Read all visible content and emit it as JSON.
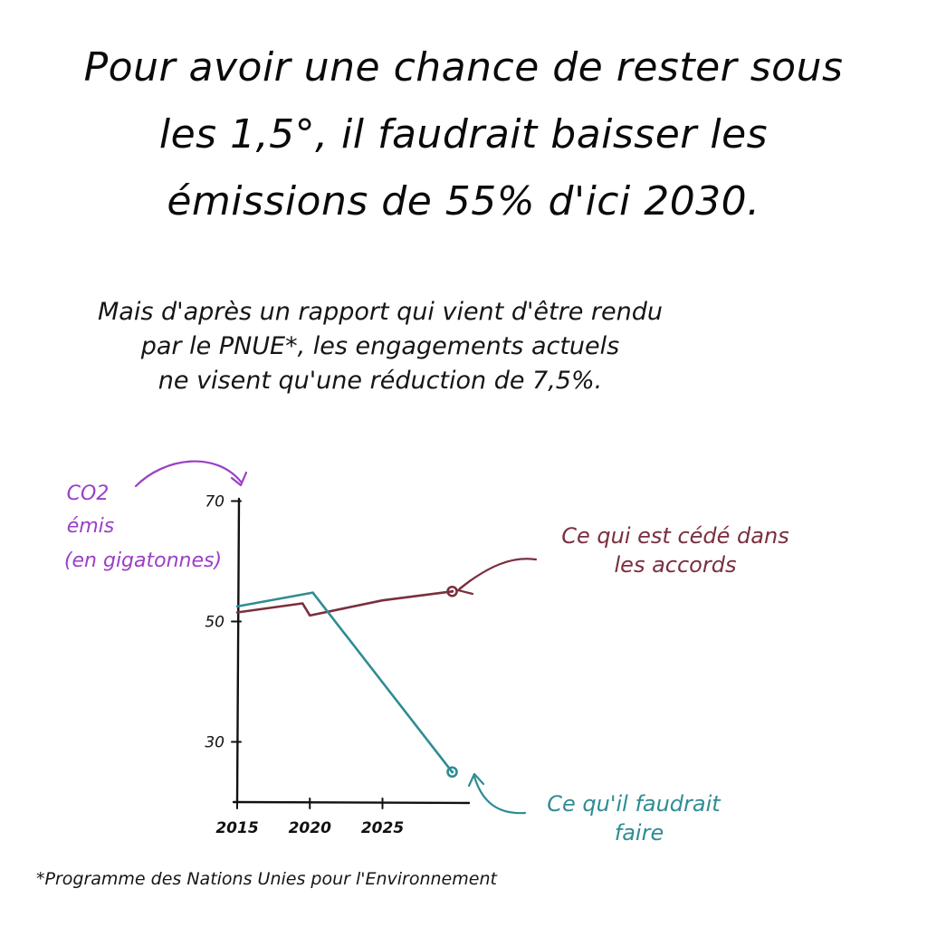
{
  "header": {
    "title_lines": [
      "Pour avoir une chance de rester sous",
      "les 1,5°, il faudrait baisser les",
      "émissions de 55% d'ici 2030."
    ]
  },
  "intro": {
    "lines": [
      "Mais d'après un rapport qui vient d'être rendu",
      "par le PNUE*, les engagements actuels",
      "ne visent qu'une réduction de 7,5%."
    ]
  },
  "footnote": "*Programme des Nations Unies pour l'Environnement",
  "colors": {
    "text": "#111111",
    "axis_label": "#9b3fc6",
    "pledges": "#7a2f3e",
    "needed": "#2f8c94"
  },
  "chart_data": {
    "type": "line",
    "ylabel_lines": [
      "CO2",
      "émis",
      "(en gigatonnes)"
    ],
    "y_ticks": [
      30,
      50,
      70
    ],
    "x_ticks": [
      2015,
      2020,
      2025
    ],
    "xlim": [
      2015,
      2030
    ],
    "ylim": [
      20,
      70
    ],
    "grid": false,
    "series": [
      {
        "key": "pledges",
        "x": [
          2015,
          2019.5,
          2020,
          2025,
          2029.8
        ],
        "y": [
          51.5,
          53,
          51,
          53.5,
          55
        ],
        "label_lines": [
          "Ce qui est cédé dans",
          "les accords"
        ]
      },
      {
        "key": "needed",
        "x": [
          2015,
          2020.2,
          2029.8
        ],
        "y": [
          52.5,
          54.8,
          25
        ],
        "label_lines": [
          "Ce qu'il faudrait",
          "faire"
        ]
      }
    ]
  }
}
